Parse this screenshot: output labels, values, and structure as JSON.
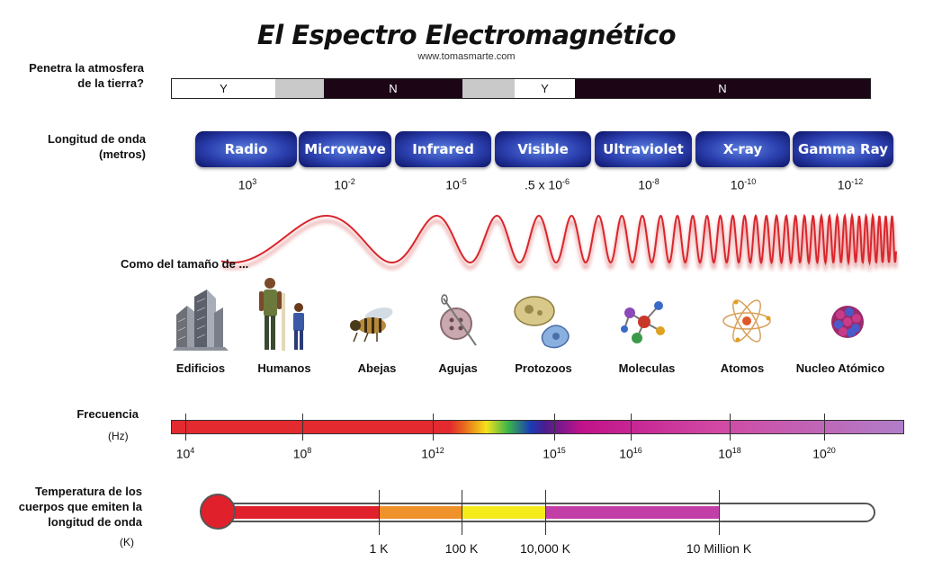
{
  "title": "El Espectro Electromagnético",
  "site": "www.tomasmarte.com",
  "atmosphere": {
    "label": "Penetra la atmosfera de la tierra?",
    "segments": [
      {
        "text": "Y",
        "color": "#ffffff"
      },
      {
        "text": "",
        "color": "#c9c9c9"
      },
      {
        "text": "N",
        "color": "#1c0616"
      },
      {
        "text": "",
        "color": "#c9c9c9"
      },
      {
        "text": "Y",
        "color": "#ffffff"
      },
      {
        "text": "N",
        "color": "#1c0616"
      }
    ]
  },
  "wavelength": {
    "label": "Longitud de onda (metros)",
    "bands": [
      "Radio",
      "Microwave",
      "Infrared",
      "Visible",
      "Ultraviolet",
      "X-ray",
      "Gamma Ray"
    ],
    "values": [
      {
        "base": "10",
        "exp": "3"
      },
      {
        "base": "10",
        "exp": "-2"
      },
      {
        "base": "10",
        "exp": "-5"
      },
      {
        "base": ".5 x 10",
        "exp": "-6"
      },
      {
        "base": "10",
        "exp": "-8"
      },
      {
        "base": "10",
        "exp": "-10"
      },
      {
        "base": "10",
        "exp": "-12"
      }
    ]
  },
  "size_heading": "Como del tamaño de ...",
  "sizes": [
    "Edificios",
    "Humanos",
    "Abejas",
    "Agujas",
    "Protozoos",
    "Moleculas",
    "Atomos",
    "Nucleo Atómico"
  ],
  "frequency": {
    "label": "Frecuencia",
    "unit": "(Hz)",
    "values": [
      {
        "base": "10",
        "exp": "4"
      },
      {
        "base": "10",
        "exp": "8"
      },
      {
        "base": "10",
        "exp": "12"
      },
      {
        "base": "10",
        "exp": "15"
      },
      {
        "base": "10",
        "exp": "16"
      },
      {
        "base": "10",
        "exp": "18"
      },
      {
        "base": "10",
        "exp": "20"
      }
    ]
  },
  "temperature": {
    "label": "Temperatura de los cuerpos que emiten la longitud de onda",
    "unit": "(K)",
    "values": [
      "1 K",
      "100 K",
      "10,000 K",
      "10 Million K"
    ],
    "colors": [
      "#e0202a",
      "#f0922a",
      "#f5ea1a",
      "#c23fa8"
    ]
  },
  "wave_color": "#d9262c"
}
